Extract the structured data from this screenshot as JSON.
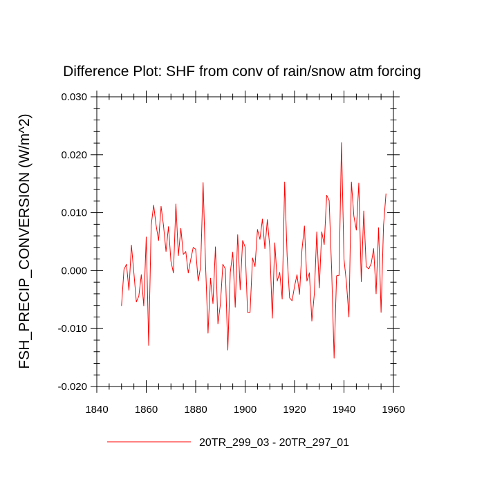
{
  "chart_data": {
    "type": "line",
    "title": "Difference Plot: SHF from conv of rain/snow atm forcing",
    "xlabel": "",
    "ylabel": "FSH_PRECIP_CONVERSION  (W/m^2)",
    "xlim": [
      1840,
      1960
    ],
    "ylim": [
      -0.02,
      0.03
    ],
    "x_ticks": [
      1840,
      1860,
      1880,
      1900,
      1920,
      1940,
      1960
    ],
    "x_tick_labels": [
      "1840",
      "1860",
      "1880",
      "1900",
      "1920",
      "1940",
      "1960"
    ],
    "y_ticks": [
      -0.02,
      -0.01,
      0.0,
      0.01,
      0.02,
      0.03
    ],
    "y_tick_labels": [
      "-0.020",
      "-0.010",
      "0.000",
      "0.010",
      "0.020",
      "0.030"
    ],
    "legend_position": "bottom",
    "grid": false,
    "series": [
      {
        "name": "20TR_299_03 - 20TR_297_01",
        "color": "#ff0000",
        "x": [
          1850,
          1851,
          1852,
          1853,
          1854,
          1855,
          1856,
          1857,
          1858,
          1859,
          1860,
          1861,
          1862,
          1863,
          1864,
          1865,
          1866,
          1867,
          1868,
          1869,
          1870,
          1871,
          1872,
          1873,
          1874,
          1875,
          1876,
          1877,
          1878,
          1879,
          1880,
          1881,
          1882,
          1883,
          1884,
          1885,
          1886,
          1887,
          1888,
          1889,
          1890,
          1891,
          1892,
          1893,
          1894,
          1895,
          1896,
          1897,
          1898,
          1899,
          1900,
          1901,
          1902,
          1903,
          1904,
          1905,
          1906,
          1907,
          1908,
          1909,
          1910,
          1911,
          1912,
          1913,
          1914,
          1915,
          1916,
          1917,
          1918,
          1919,
          1920,
          1921,
          1922,
          1923,
          1924,
          1925,
          1926,
          1927,
          1928,
          1929,
          1930,
          1931,
          1932,
          1933,
          1934,
          1935,
          1936,
          1937,
          1938,
          1939,
          1940,
          1941,
          1942,
          1943,
          1944,
          1945,
          1946,
          1947,
          1948,
          1949,
          1950,
          1951,
          1952,
          1953,
          1954,
          1955,
          1956,
          1957
        ],
        "values": [
          -0.0061,
          0.0002,
          0.0011,
          -0.0034,
          0.0044,
          -0.0004,
          -0.0054,
          -0.0044,
          -0.0007,
          -0.0061,
          0.0058,
          -0.0129,
          0.0078,
          0.0113,
          0.0078,
          0.0052,
          0.0111,
          0.0077,
          0.0033,
          0.0076,
          0.0016,
          -0.0004,
          0.0115,
          0.0026,
          0.0073,
          0.0028,
          0.0033,
          -0.0004,
          0.0019,
          0.004,
          0.0037,
          -0.0018,
          0.0006,
          0.0152,
          0.001,
          -0.0108,
          -0.0013,
          -0.0057,
          0.0041,
          -0.0092,
          -0.0058,
          0.0011,
          0.0003,
          -0.0137,
          -0.0003,
          0.0032,
          -0.0063,
          0.0062,
          -0.0033,
          0.0052,
          0.0041,
          -0.0072,
          -0.0072,
          0.0022,
          0.0007,
          0.0071,
          0.0054,
          0.0089,
          0.0038,
          0.0088,
          0.004,
          -0.0082,
          0.0048,
          -0.0018,
          -0.0003,
          -0.0049,
          0.0153,
          0.0025,
          -0.0047,
          -0.0052,
          -0.0027,
          -0.0007,
          -0.0041,
          0.0036,
          0.0077,
          -0.0018,
          -0.0004,
          -0.0087,
          -0.004,
          0.0067,
          -0.003,
          0.0067,
          0.0045,
          0.013,
          0.0121,
          0.0002,
          -0.0151,
          -0.0009,
          -0.0008,
          0.0221,
          0.002,
          -0.0021,
          -0.008,
          0.0153,
          0.0094,
          0.007,
          0.0151,
          -0.0019,
          0.0103,
          0.0007,
          0.0003,
          0.0012,
          0.0038,
          -0.004,
          0.0074,
          -0.0072,
          0.0078,
          0.0133
        ]
      }
    ]
  }
}
